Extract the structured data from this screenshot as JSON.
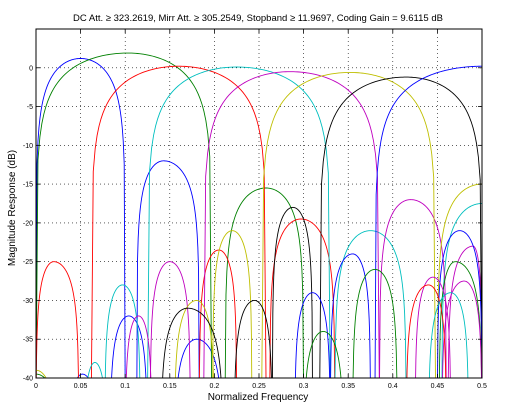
{
  "chart_data": {
    "type": "line",
    "title": "DC Att. ≥ 323.2619, Mirr Att. ≥ 305.2549, Stopband ≥ 11.9697, Coding Gain = 9.6115 dB",
    "xlabel": "Normalized Frequency",
    "ylabel": "Magnitude Response (dB)",
    "xlim": [
      0,
      0.5
    ],
    "ylim": [
      -40,
      5
    ],
    "xticks": [
      "0",
      "0.05",
      "0.1",
      "0.15",
      "0.2",
      "0.25",
      "0.3",
      "0.35",
      "0.4",
      "0.45",
      "0.5"
    ],
    "yticks": [
      "0",
      "-5",
      "-10",
      "-15",
      "-20",
      "-25",
      "-30",
      "-35",
      "-40"
    ],
    "grid": true,
    "series": [
      {
        "color": "#0000ff",
        "lobes": [
          [
            0.0,
            0.1,
            0.05,
            1.2
          ],
          [
            0.113,
            0.183,
            0.143,
            -12.0
          ],
          [
            0.083,
            0.125,
            0.104,
            -32.0
          ],
          [
            0.155,
            0.21,
            0.18,
            -35.0
          ],
          [
            0.035,
            0.072,
            0.052,
            -39.5
          ]
        ]
      },
      {
        "color": "#008000",
        "lobes": [
          [
            0.0,
            0.197,
            0.103,
            1.9
          ],
          [
            0.212,
            0.3,
            0.258,
            -15.5
          ],
          [
            0.0,
            0.03,
            0.0,
            -39.5
          ]
        ]
      },
      {
        "color": "#ff0000",
        "lobes": [
          [
            0.062,
            0.258,
            0.16,
            0.2
          ],
          [
            0.0,
            0.048,
            0.02,
            -25.0
          ],
          [
            0.262,
            0.335,
            0.297,
            -19.5
          ],
          [
            0.183,
            0.225,
            0.205,
            -23.5
          ]
        ]
      },
      {
        "color": "#00bfbf",
        "lobes": [
          [
            0.125,
            0.33,
            0.225,
            0.1
          ],
          [
            0.077,
            0.117,
            0.097,
            -28.0
          ],
          [
            0.335,
            0.415,
            0.375,
            -21.0
          ],
          [
            0.053,
            0.08,
            0.066,
            -38.0
          ],
          [
            0.455,
            0.5,
            0.5,
            -17.5
          ]
        ]
      },
      {
        "color": "#bf00bf",
        "lobes": [
          [
            0.188,
            0.385,
            0.285,
            -0.5
          ],
          [
            0.128,
            0.173,
            0.15,
            -25.0
          ],
          [
            0.385,
            0.46,
            0.42,
            -17.0
          ],
          [
            0.1,
            0.13,
            0.115,
            -32.0
          ],
          [
            0.462,
            0.5,
            0.49,
            -23.0
          ]
        ]
      },
      {
        "color": "#bfbf00",
        "lobes": [
          [
            0.253,
            0.448,
            0.352,
            -0.6
          ],
          [
            0.198,
            0.242,
            0.22,
            -21.0
          ],
          [
            0.45,
            0.5,
            0.5,
            -15.0
          ],
          [
            0.155,
            0.2,
            0.18,
            -30.0
          ],
          [
            0.0,
            0.025,
            0.0,
            -39.0
          ]
        ]
      },
      {
        "color": "#000000",
        "lobes": [
          [
            0.318,
            0.5,
            0.415,
            -1.2
          ],
          [
            0.265,
            0.31,
            0.288,
            -18.0
          ],
          [
            0.222,
            0.265,
            0.245,
            -30.0
          ],
          [
            0.14,
            0.21,
            0.17,
            -31.0
          ]
        ]
      },
      {
        "color": "#0000ff",
        "lobes": [
          [
            0.38,
            0.5,
            0.5,
            0.2
          ],
          [
            0.33,
            0.375,
            0.355,
            -24.0
          ],
          [
            0.29,
            0.33,
            0.31,
            -29.0
          ],
          [
            0.45,
            0.5,
            0.475,
            -21.0
          ]
        ]
      },
      {
        "color": "#008000",
        "lobes": [
          [
            0.355,
            0.405,
            0.38,
            -26.0
          ],
          [
            0.3,
            0.345,
            0.322,
            -34.0
          ],
          [
            0.452,
            0.5,
            0.47,
            -25.0
          ]
        ]
      },
      {
        "color": "#bf00bf",
        "lobes": [
          [
            0.425,
            0.465,
            0.445,
            -27.0
          ],
          [
            0.455,
            0.5,
            0.48,
            -27.5
          ]
        ]
      },
      {
        "color": "#ff0000",
        "lobes": [
          [
            0.415,
            0.46,
            0.44,
            -28.0
          ]
        ]
      },
      {
        "color": "#00bfbf",
        "lobes": [
          [
            0.44,
            0.485,
            0.465,
            -29.0
          ]
        ]
      }
    ]
  }
}
